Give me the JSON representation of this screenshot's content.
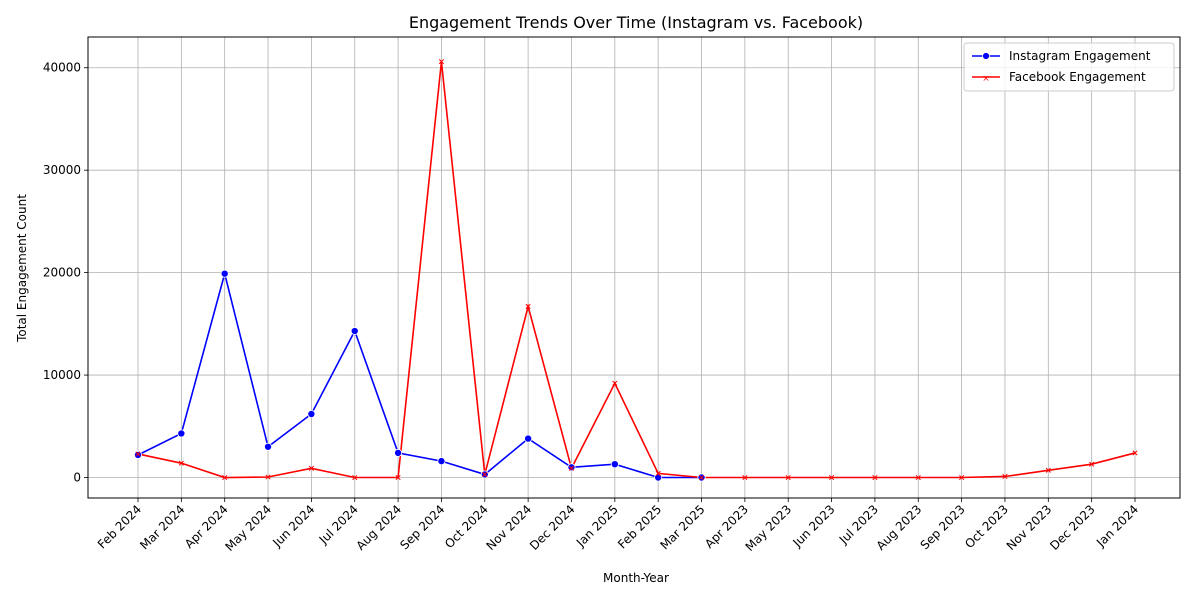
{
  "chart_data": {
    "type": "line",
    "title": "Engagement Trends Over Time (Instagram vs. Facebook)",
    "xlabel": "Month-Year",
    "ylabel": "Total Engagement Count",
    "ylim": [
      -2000,
      43000
    ],
    "yticks": [
      0,
      10000,
      20000,
      30000,
      40000
    ],
    "grid": true,
    "legend_position": "top-right",
    "categories": [
      "Feb 2024",
      "Mar 2024",
      "Apr 2024",
      "May 2024",
      "Jun 2024",
      "Jul 2024",
      "Aug 2024",
      "Sep 2024",
      "Oct 2024",
      "Nov 2024",
      "Dec 2024",
      "Jan 2025",
      "Feb 2025",
      "Mar 2025",
      "Apr 2023",
      "May 2023",
      "Jun 2023",
      "Jul 2023",
      "Aug 2023",
      "Sep 2023",
      "Oct 2023",
      "Nov 2023",
      "Dec 2023",
      "Jan 2024"
    ],
    "series": [
      {
        "name": "Instagram Engagement",
        "color": "#0000ff",
        "marker": "circle",
        "values": [
          2200,
          4300,
          19900,
          3000,
          6200,
          14300,
          2400,
          1600,
          300,
          3800,
          1000,
          1300,
          0,
          0,
          null,
          null,
          null,
          null,
          null,
          null,
          null,
          null,
          null,
          null
        ]
      },
      {
        "name": "Facebook Engagement",
        "color": "#ff0000",
        "marker": "x",
        "values": [
          2300,
          1400,
          0,
          50,
          900,
          0,
          0,
          40600,
          300,
          16700,
          900,
          9200,
          400,
          0,
          0,
          0,
          0,
          0,
          0,
          0,
          100,
          700,
          1300,
          2400
        ]
      }
    ]
  }
}
